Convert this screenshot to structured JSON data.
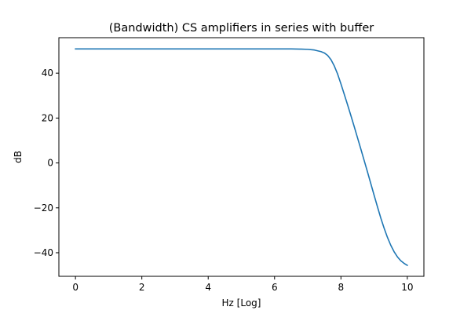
{
  "chart_data": {
    "type": "line",
    "title": "(Bandwidth) CS amplifiers in series with buffer",
    "xlabel": "Hz [Log]",
    "ylabel": "dB",
    "xlim": [
      -0.5,
      10.5
    ],
    "ylim": [
      -50.5,
      55.8
    ],
    "xticks": [
      0,
      2,
      4,
      6,
      8,
      10
    ],
    "yticks": [
      -40,
      -20,
      0,
      20,
      40
    ],
    "grid": false,
    "series": [
      {
        "color": "#1f77b4",
        "x": [
          0,
          1,
          2,
          3,
          4,
          5,
          6,
          6.5,
          6.8,
          7.0,
          7.2,
          7.4,
          7.5,
          7.6,
          7.7,
          7.8,
          7.9,
          8.0,
          8.1,
          8.2,
          8.3,
          8.4,
          8.5,
          8.6,
          8.7,
          8.8,
          8.9,
          9.0,
          9.1,
          9.2,
          9.3,
          9.4,
          9.5,
          9.6,
          9.7,
          9.8,
          9.9,
          10.0
        ],
        "y": [
          50.8,
          50.8,
          50.8,
          50.8,
          50.8,
          50.8,
          50.8,
          50.8,
          50.7,
          50.6,
          50.3,
          49.6,
          49.0,
          47.9,
          46.0,
          43.2,
          39.6,
          35.2,
          30.6,
          25.9,
          21.1,
          16.2,
          11.2,
          6.2,
          1.1,
          -4.0,
          -9.2,
          -14.4,
          -19.5,
          -24.5,
          -29.0,
          -33.1,
          -36.6,
          -39.5,
          -41.8,
          -43.5,
          -44.7,
          -45.6
        ]
      }
    ]
  }
}
